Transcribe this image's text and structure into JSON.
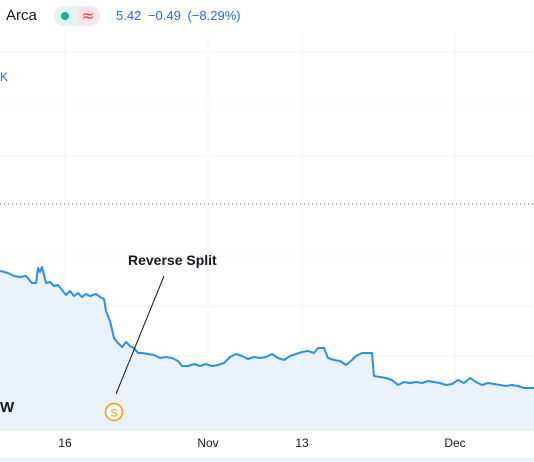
{
  "header": {
    "exchange": "Arca",
    "last_price": "5.42",
    "change": "−0.49",
    "change_pct": "(−8.29%)",
    "status_icon_market": "green-dot-icon",
    "status_icon_delayed": "wave-icon"
  },
  "chart_overlay": {
    "k_label": "K",
    "w_label": "W",
    "annotation": "Reverse Split",
    "event_badge": "S"
  },
  "colors": {
    "line": "#2d8fe3",
    "fill": "#eaf3fd",
    "accent": "#2962ff",
    "event": "#ff9800"
  },
  "chart_data": {
    "type": "area",
    "x_tick_labels": [
      "16",
      "Nov",
      "13",
      "Dec"
    ],
    "grid": true,
    "annotations": [
      {
        "text": "Reverse Split"
      }
    ]
  }
}
